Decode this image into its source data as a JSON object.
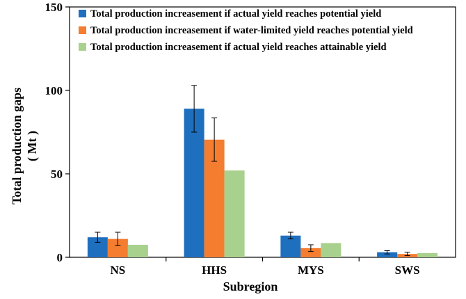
{
  "chart_data": {
    "type": "bar",
    "title": "",
    "xlabel": "Subregion",
    "ylabel_line1": "Total production gaps",
    "ylabel_line2": "( Mt )",
    "ylim": [
      0,
      150
    ],
    "yticks": [
      0,
      50,
      100,
      150
    ],
    "categories": [
      "NS",
      "HHS",
      "MYS",
      "SWS"
    ],
    "series": [
      {
        "name": "Total production increasement if actual yield reaches potential yield",
        "color": "#1f6fbf",
        "values": [
          12,
          89,
          13,
          3
        ],
        "errors": [
          3,
          14,
          2,
          1
        ]
      },
      {
        "name": "Total production increasement if water-limited yield reaches potential yield",
        "color": "#f47d30",
        "values": [
          11,
          70.5,
          5.5,
          2
        ],
        "errors": [
          4,
          13,
          2,
          1
        ]
      },
      {
        "name": "Total production increasement if actual yield reaches attainable yield",
        "color": "#a9d18e",
        "values": [
          7.5,
          52,
          8.5,
          2.5
        ],
        "errors": [
          null,
          null,
          null,
          null
        ]
      }
    ],
    "grid": false,
    "legend_position": "top-left"
  }
}
